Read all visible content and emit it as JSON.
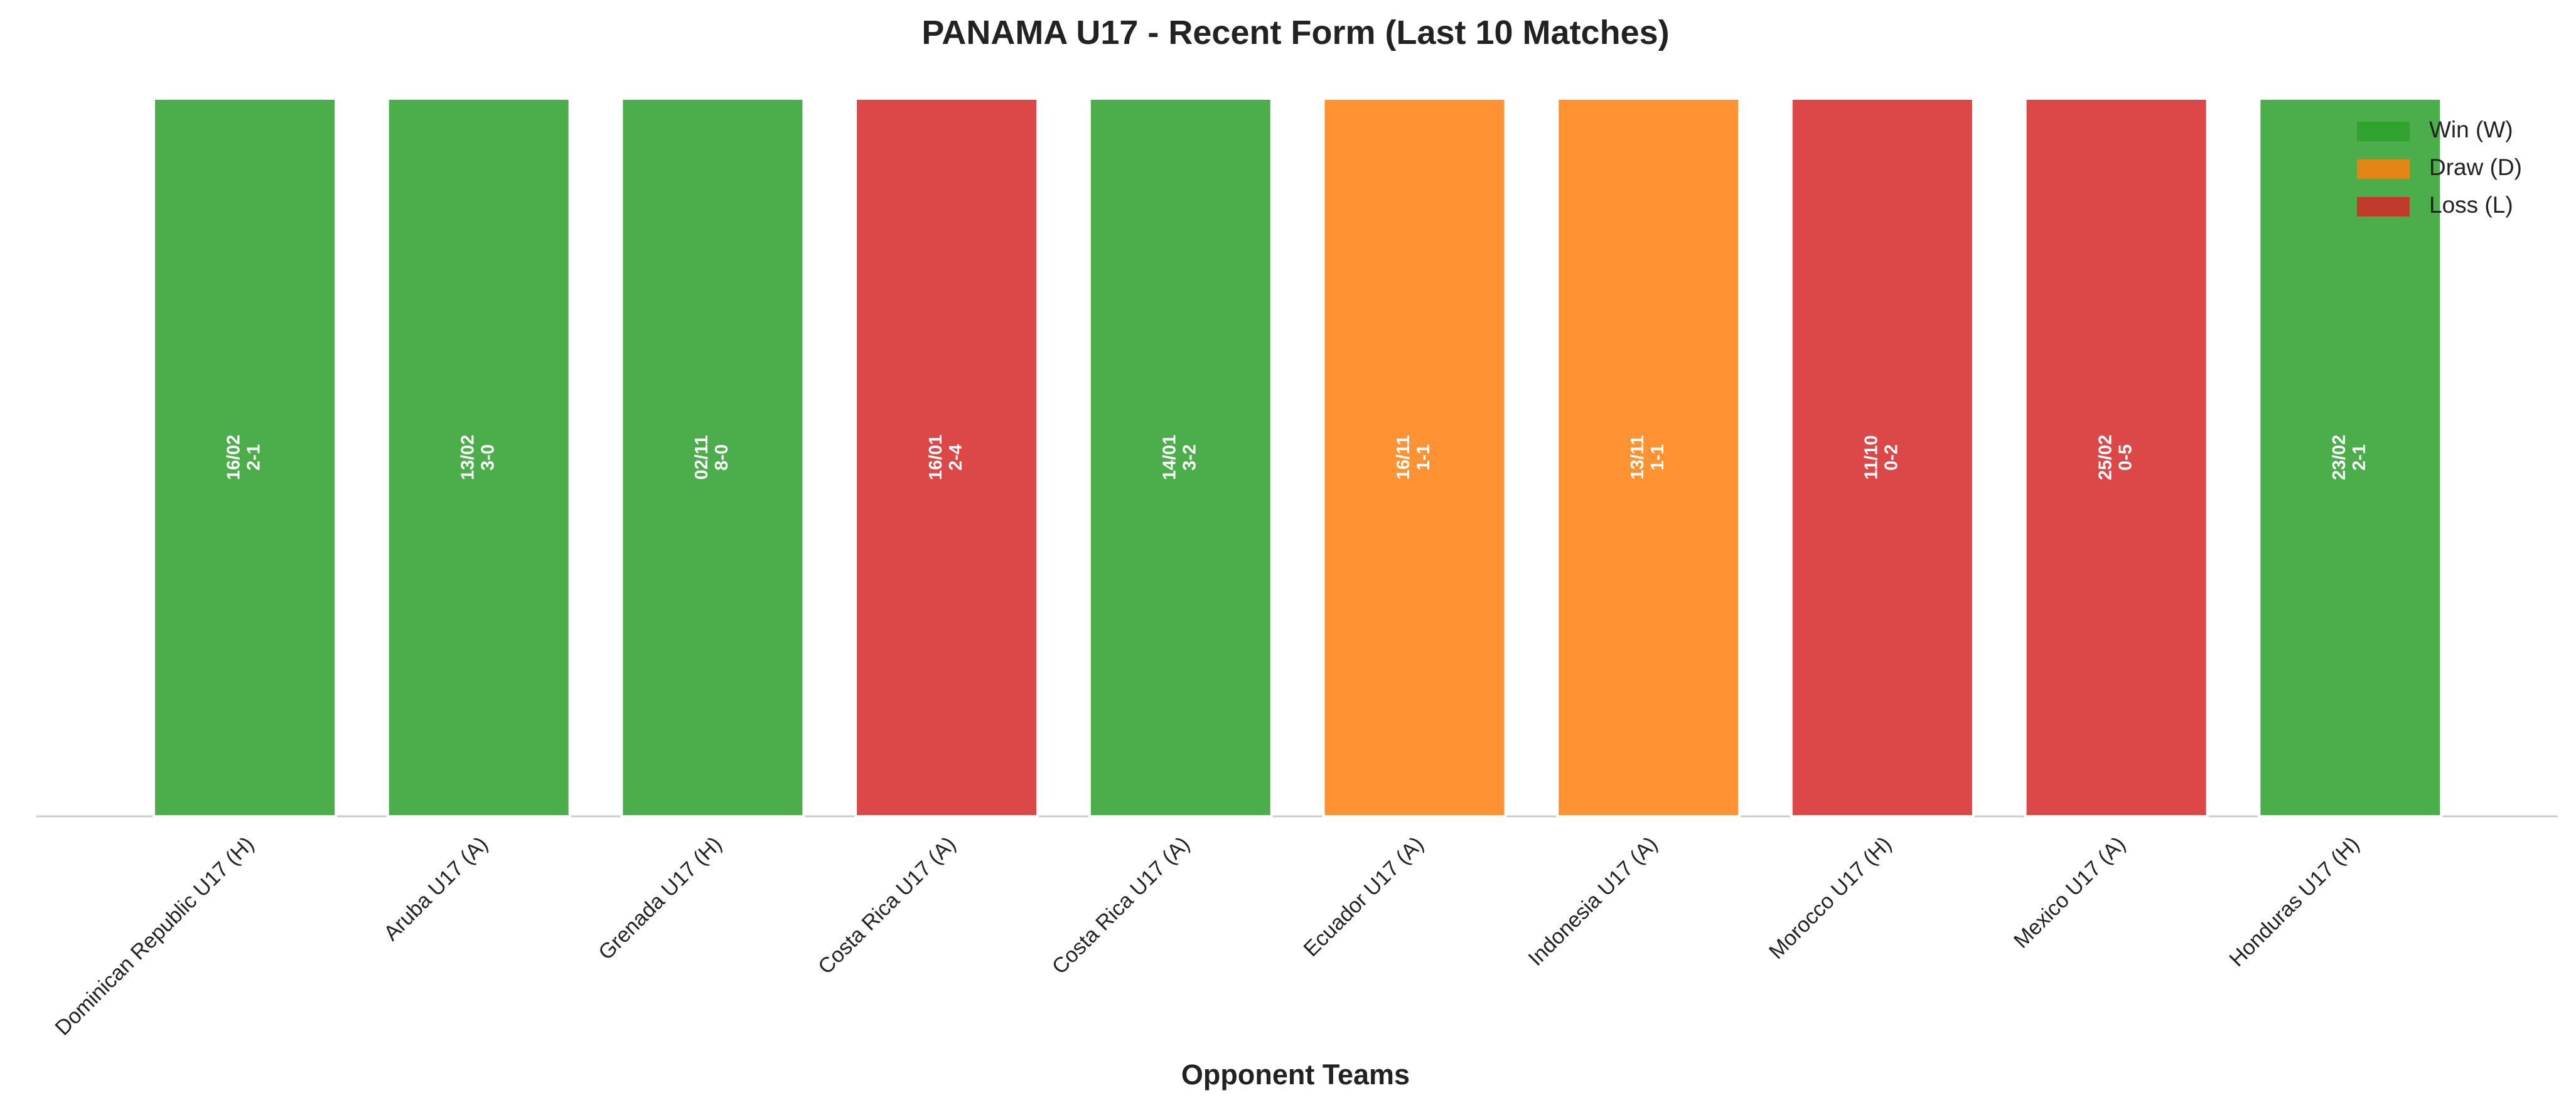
{
  "chart_data": {
    "type": "bar",
    "title": "PANAMA U17 - Recent Form (Last 10 Matches)",
    "x_label": "Opponent Teams",
    "categories": [
      "Dominican Republic U17 (H)",
      "Aruba U17 (A)",
      "Grenada U17 (H)",
      "Costa Rica U17 (A)",
      "Costa Rica U17 (A)",
      "Ecuador U17 (A)",
      "Indonesia U17 (A)",
      "Morocco U17 (H)",
      "Mexico U17 (A)",
      "Honduras U17 (H)"
    ],
    "values": [
      1,
      1,
      1,
      1,
      1,
      1,
      1,
      1,
      1,
      1
    ],
    "bar_labels": [
      [
        "16/02",
        "2-1"
      ],
      [
        "13/02",
        "3-0"
      ],
      [
        "02/11",
        "8-0"
      ],
      [
        "16/01",
        "2-4"
      ],
      [
        "14/01",
        "3-2"
      ],
      [
        "16/11",
        "1-1"
      ],
      [
        "13/11",
        "1-1"
      ],
      [
        "11/10",
        "0-2"
      ],
      [
        "25/02",
        "0-5"
      ],
      [
        "23/02",
        "2-1"
      ]
    ],
    "colors": [
      "#2ca02c",
      "#2ca02c",
      "#2ca02c",
      "#d62728",
      "#2ca02c",
      "#ff7f0e",
      "#ff7f0e",
      "#d62728",
      "#d62728",
      "#2ca02c"
    ],
    "ylim": [
      0,
      1
    ],
    "legend": {
      "position": "upper right",
      "entries": [
        {
          "name": "Win (W)",
          "color": "#2ca02c"
        },
        {
          "name": "Draw (D)",
          "color": "#ff7f0e"
        },
        {
          "name": "Loss (L)",
          "color": "#d62728"
        }
      ]
    }
  }
}
